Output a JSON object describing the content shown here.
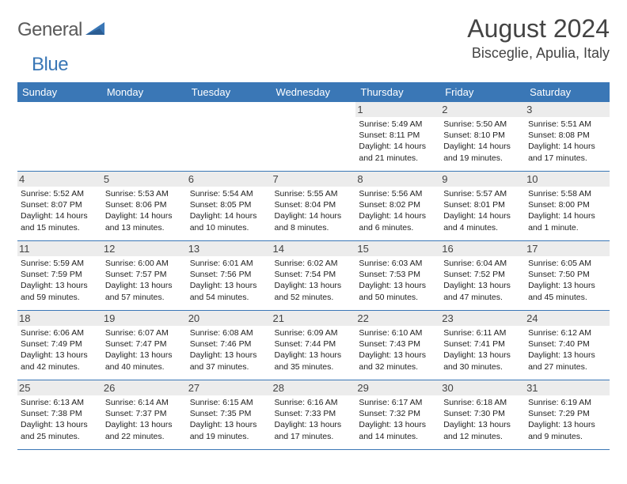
{
  "brand": {
    "name_part1": "General",
    "name_part2": "Blue"
  },
  "title": "August 2024",
  "location": "Bisceglie, Apulia, Italy",
  "colors": {
    "accent": "#3a77b6",
    "header_bg": "#3a77b6",
    "daynum_bg": "#ececec",
    "text": "#333333"
  },
  "calendar": {
    "day_names": [
      "Sunday",
      "Monday",
      "Tuesday",
      "Wednesday",
      "Thursday",
      "Friday",
      "Saturday"
    ],
    "weeks": [
      [
        null,
        null,
        null,
        null,
        {
          "n": "1",
          "sunrise": "5:49 AM",
          "sunset": "8:11 PM",
          "daylight": "14 hours and 21 minutes."
        },
        {
          "n": "2",
          "sunrise": "5:50 AM",
          "sunset": "8:10 PM",
          "daylight": "14 hours and 19 minutes."
        },
        {
          "n": "3",
          "sunrise": "5:51 AM",
          "sunset": "8:08 PM",
          "daylight": "14 hours and 17 minutes."
        }
      ],
      [
        {
          "n": "4",
          "sunrise": "5:52 AM",
          "sunset": "8:07 PM",
          "daylight": "14 hours and 15 minutes."
        },
        {
          "n": "5",
          "sunrise": "5:53 AM",
          "sunset": "8:06 PM",
          "daylight": "14 hours and 13 minutes."
        },
        {
          "n": "6",
          "sunrise": "5:54 AM",
          "sunset": "8:05 PM",
          "daylight": "14 hours and 10 minutes."
        },
        {
          "n": "7",
          "sunrise": "5:55 AM",
          "sunset": "8:04 PM",
          "daylight": "14 hours and 8 minutes."
        },
        {
          "n": "8",
          "sunrise": "5:56 AM",
          "sunset": "8:02 PM",
          "daylight": "14 hours and 6 minutes."
        },
        {
          "n": "9",
          "sunrise": "5:57 AM",
          "sunset": "8:01 PM",
          "daylight": "14 hours and 4 minutes."
        },
        {
          "n": "10",
          "sunrise": "5:58 AM",
          "sunset": "8:00 PM",
          "daylight": "14 hours and 1 minute."
        }
      ],
      [
        {
          "n": "11",
          "sunrise": "5:59 AM",
          "sunset": "7:59 PM",
          "daylight": "13 hours and 59 minutes."
        },
        {
          "n": "12",
          "sunrise": "6:00 AM",
          "sunset": "7:57 PM",
          "daylight": "13 hours and 57 minutes."
        },
        {
          "n": "13",
          "sunrise": "6:01 AM",
          "sunset": "7:56 PM",
          "daylight": "13 hours and 54 minutes."
        },
        {
          "n": "14",
          "sunrise": "6:02 AM",
          "sunset": "7:54 PM",
          "daylight": "13 hours and 52 minutes."
        },
        {
          "n": "15",
          "sunrise": "6:03 AM",
          "sunset": "7:53 PM",
          "daylight": "13 hours and 50 minutes."
        },
        {
          "n": "16",
          "sunrise": "6:04 AM",
          "sunset": "7:52 PM",
          "daylight": "13 hours and 47 minutes."
        },
        {
          "n": "17",
          "sunrise": "6:05 AM",
          "sunset": "7:50 PM",
          "daylight": "13 hours and 45 minutes."
        }
      ],
      [
        {
          "n": "18",
          "sunrise": "6:06 AM",
          "sunset": "7:49 PM",
          "daylight": "13 hours and 42 minutes."
        },
        {
          "n": "19",
          "sunrise": "6:07 AM",
          "sunset": "7:47 PM",
          "daylight": "13 hours and 40 minutes."
        },
        {
          "n": "20",
          "sunrise": "6:08 AM",
          "sunset": "7:46 PM",
          "daylight": "13 hours and 37 minutes."
        },
        {
          "n": "21",
          "sunrise": "6:09 AM",
          "sunset": "7:44 PM",
          "daylight": "13 hours and 35 minutes."
        },
        {
          "n": "22",
          "sunrise": "6:10 AM",
          "sunset": "7:43 PM",
          "daylight": "13 hours and 32 minutes."
        },
        {
          "n": "23",
          "sunrise": "6:11 AM",
          "sunset": "7:41 PM",
          "daylight": "13 hours and 30 minutes."
        },
        {
          "n": "24",
          "sunrise": "6:12 AM",
          "sunset": "7:40 PM",
          "daylight": "13 hours and 27 minutes."
        }
      ],
      [
        {
          "n": "25",
          "sunrise": "6:13 AM",
          "sunset": "7:38 PM",
          "daylight": "13 hours and 25 minutes."
        },
        {
          "n": "26",
          "sunrise": "6:14 AM",
          "sunset": "7:37 PM",
          "daylight": "13 hours and 22 minutes."
        },
        {
          "n": "27",
          "sunrise": "6:15 AM",
          "sunset": "7:35 PM",
          "daylight": "13 hours and 19 minutes."
        },
        {
          "n": "28",
          "sunrise": "6:16 AM",
          "sunset": "7:33 PM",
          "daylight": "13 hours and 17 minutes."
        },
        {
          "n": "29",
          "sunrise": "6:17 AM",
          "sunset": "7:32 PM",
          "daylight": "13 hours and 14 minutes."
        },
        {
          "n": "30",
          "sunrise": "6:18 AM",
          "sunset": "7:30 PM",
          "daylight": "13 hours and 12 minutes."
        },
        {
          "n": "31",
          "sunrise": "6:19 AM",
          "sunset": "7:29 PM",
          "daylight": "13 hours and 9 minutes."
        }
      ]
    ],
    "labels": {
      "sunrise": "Sunrise: ",
      "sunset": "Sunset: ",
      "daylight": "Daylight: "
    }
  }
}
